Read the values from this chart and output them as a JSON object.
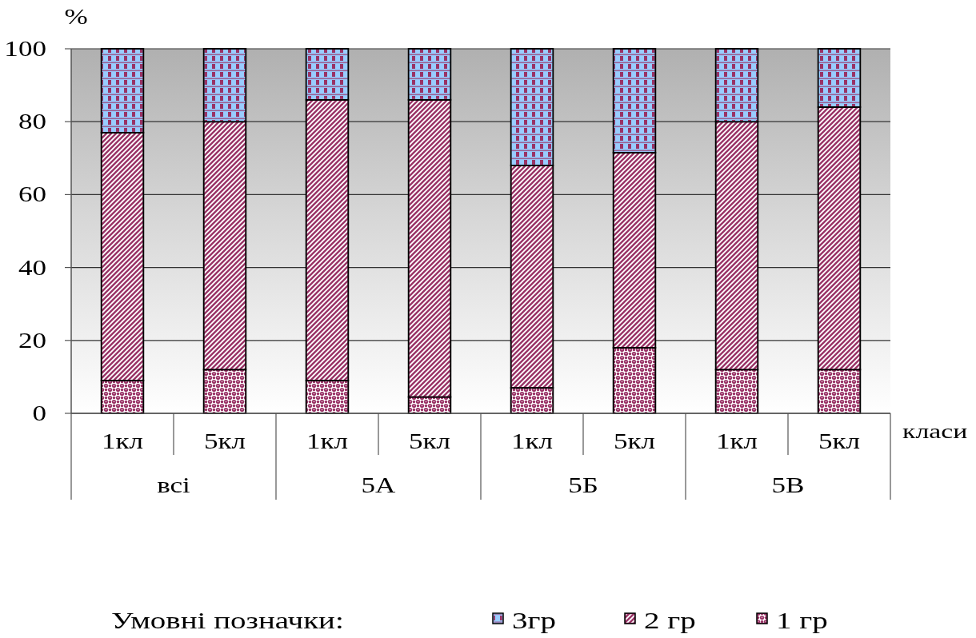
{
  "chart_data": {
    "type": "bar",
    "stacked": true,
    "categories": [
      "1кл",
      "5кл",
      "1кл",
      "5кл",
      "1кл",
      "5кл",
      "1кл",
      "5кл"
    ],
    "series": [
      {
        "name": "1 гр",
        "color": "#993366",
        "values": [
          9,
          12,
          9,
          4.5,
          7,
          18,
          12,
          12
        ]
      },
      {
        "name": "2 гр",
        "color": "#993366",
        "values": [
          68,
          68,
          77,
          81.5,
          61,
          53.5,
          68,
          72
        ]
      },
      {
        "name": "3гр",
        "color": "#99ccff",
        "values": [
          23,
          20,
          14,
          14,
          32,
          28.5,
          20,
          16
        ]
      }
    ],
    "ylim": [
      0,
      100
    ],
    "yticks": [
      0,
      20,
      40,
      60,
      80,
      100
    ],
    "grid": "y",
    "ylabel": "%",
    "xlabel": "класи",
    "legend": "bottom",
    "legend_title": "Умовні позначки:",
    "annotations": [
      "всі",
      "5А",
      "5Б",
      "5В"
    ]
  }
}
